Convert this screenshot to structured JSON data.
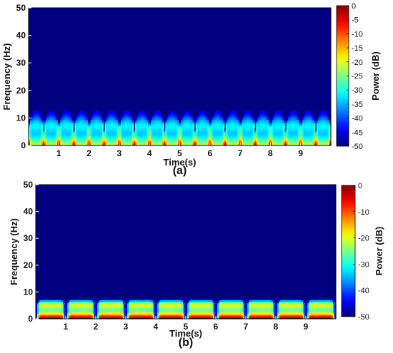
{
  "chart_data": [
    {
      "type": "heatmap",
      "panel_label": "(a)",
      "xlabel": "Time(s)",
      "ylabel": "Frequency (Hz)",
      "xlim": [
        0,
        10
      ],
      "ylim": [
        0,
        50
      ],
      "xticks": [
        "1",
        "2",
        "3",
        "4",
        "5",
        "6",
        "7",
        "8",
        "9"
      ],
      "yticks": [
        "0",
        "10",
        "20",
        "30",
        "40",
        "50"
      ],
      "colorbar": {
        "label": "Power (dB)",
        "range": [
          -50,
          0
        ],
        "ticks": [
          "0",
          "-5",
          "-10",
          "-15",
          "-20",
          "-25",
          "-30",
          "-35",
          "-40",
          "-45",
          "-50"
        ]
      },
      "pattern": {
        "pulse_rate_hz": 2,
        "band_top_hz": 13,
        "peak_power_db": -5,
        "floor_power_db": -50
      }
    },
    {
      "type": "heatmap",
      "panel_label": "(b)",
      "xlabel": "Time(s)",
      "ylabel": "Frequency (Hz)",
      "xlim": [
        0,
        10
      ],
      "ylim": [
        0,
        50
      ],
      "xticks": [
        "1",
        "2",
        "3",
        "4",
        "5",
        "6",
        "7",
        "8",
        "9"
      ],
      "yticks": [
        "0",
        "10",
        "20",
        "30",
        "40",
        "50"
      ],
      "colorbar": {
        "label": "Power (dB)",
        "range": [
          -50,
          0
        ],
        "ticks": [
          "0",
          "-10",
          "-20",
          "-30",
          "-40",
          "-50"
        ]
      },
      "pattern": {
        "pulse_rate_hz": 1,
        "band_top_hz": 7,
        "peak_power_db": -2,
        "floor_power_db": -50
      }
    }
  ]
}
